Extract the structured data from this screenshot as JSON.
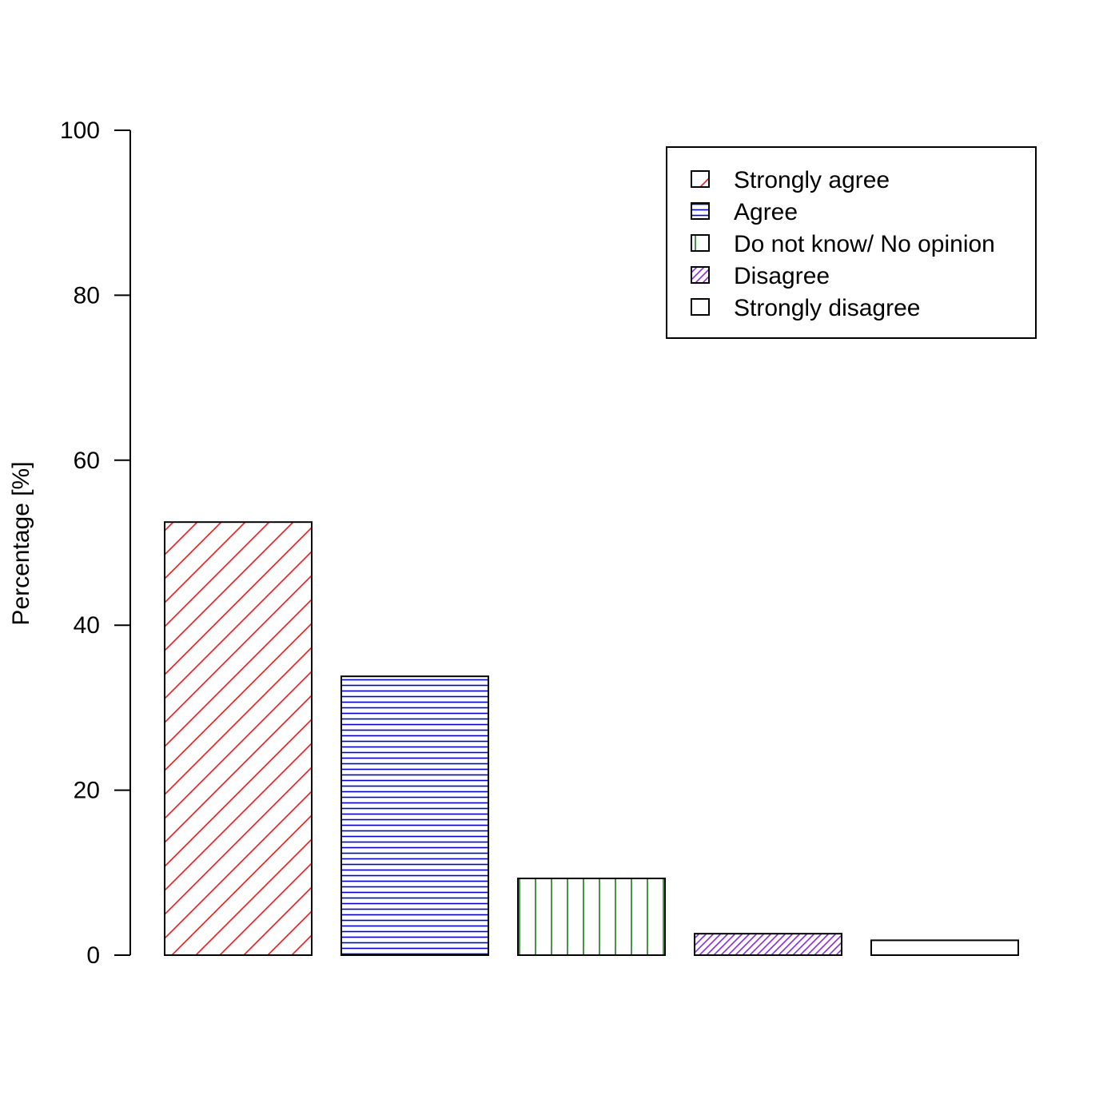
{
  "chart_data": {
    "type": "bar",
    "title": "",
    "xlabel": "",
    "ylabel": "Percentage [%]",
    "ylim": [
      0,
      100
    ],
    "y_ticks": [
      0,
      20,
      40,
      60,
      80,
      100
    ],
    "grid": false,
    "legend_position": "top-right",
    "categories": [
      "Strongly agree",
      "Agree",
      "Do not know/ No opinion",
      "Disagree",
      "Strongly disagree"
    ],
    "values": [
      52.5,
      33.8,
      9.3,
      2.6,
      1.8
    ],
    "bars": [
      {
        "name": "Strongly agree",
        "value": 52.5,
        "color": "#e41a1c",
        "pattern": "diagonal-45"
      },
      {
        "name": "Agree",
        "value": 33.8,
        "color": "#0000cc",
        "pattern": "horizontal"
      },
      {
        "name": "Do not know/ No opinion",
        "value": 9.3,
        "color": "#1a7a1a",
        "pattern": "vertical"
      },
      {
        "name": "Disagree",
        "value": 2.6,
        "color": "#8a2be2",
        "pattern": "diagonal-dense"
      },
      {
        "name": "Strongly disagree",
        "value": 1.8,
        "color": "#ff8c00",
        "pattern": "sparse"
      }
    ]
  }
}
